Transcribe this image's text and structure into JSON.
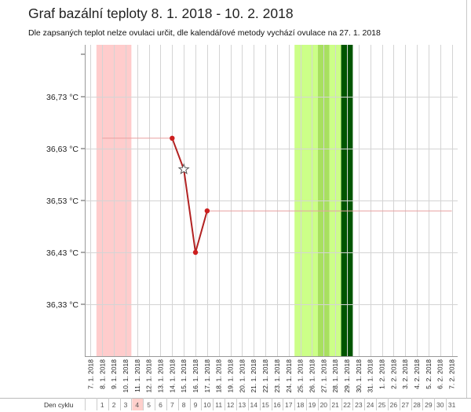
{
  "title": "Graf bazální teploty 8. 1. 2018 - 10. 2. 2018",
  "subtitle": "Dle zapsaných teplot nelze ovulaci určit, dle kalendářové metody vychází ovulace na 27. 1. 2018",
  "cycle_label": "Den cyklu",
  "colors": {
    "menstruation": "#ffcccc",
    "fertile_light": "#ccff88",
    "fertile_mid": "#a8e060",
    "fertile_dark": "#005500",
    "line": "#b22222",
    "coverline": "#e8a0a0",
    "grid": "#d4d4d4",
    "cycle_highlight": "#ffd0cc"
  },
  "chart_data": {
    "type": "line",
    "x_dates": [
      "7. 1. 2018",
      "8. 1. 2018",
      "9. 1. 2018",
      "10. 1. 2018",
      "11. 1. 2018",
      "12. 1. 2018",
      "13. 1. 2018",
      "14. 1. 2018",
      "15. 1. 2018",
      "16. 1. 2018",
      "17. 1. 2018",
      "18. 1. 2018",
      "19. 1. 2018",
      "20. 1. 2018",
      "21. 1. 2018",
      "22. 1. 2018",
      "23. 1. 2018",
      "24. 1. 2018",
      "25. 1. 2018",
      "26. 1. 2018",
      "27. 1. 2018",
      "28. 1. 2018",
      "29. 1. 2018",
      "30. 1. 2018",
      "31. 1. 2018",
      "1. 2. 2018",
      "2. 2. 2018",
      "3. 2. 2018",
      "4. 2. 2018",
      "5. 2. 2018",
      "6. 2. 2018",
      "7. 2. 2018"
    ],
    "cycle_days": [
      "",
      "1",
      "2",
      "3",
      "4",
      "5",
      "6",
      "7",
      "8",
      "9",
      "10",
      "11",
      "12",
      "13",
      "14",
      "15",
      "16",
      "17",
      "18",
      "19",
      "20",
      "21",
      "22",
      "23",
      "24",
      "25",
      "26",
      "27",
      "28",
      "29",
      "30",
      "31"
    ],
    "current_cycle_day": "4",
    "y_ticks": [
      "36,33 °C",
      "36,43 °C",
      "36,53 °C",
      "36,63 °C",
      "36,73 °C"
    ],
    "y_tick_values": [
      36.33,
      36.43,
      36.53,
      36.63,
      36.73
    ],
    "ylim": [
      36.23,
      36.83
    ],
    "series": [
      {
        "points": [
          {
            "x": "14. 1. 2018",
            "y": 36.65
          },
          {
            "x": "15. 1. 2018",
            "y": 36.59,
            "marker": "star"
          },
          {
            "x": "16. 1. 2018",
            "y": 36.43
          },
          {
            "x": "17. 1. 2018",
            "y": 36.51
          }
        ]
      }
    ],
    "coverlines": [
      {
        "from": "8. 1. 2018",
        "to": "14. 1. 2018",
        "y": 36.65
      },
      {
        "from": "17. 1. 2018",
        "to": "7. 2. 2018",
        "y": 36.51
      }
    ],
    "bands": [
      {
        "from": "8. 1. 2018",
        "to": "10. 1. 2018",
        "kind": "menstruation"
      },
      {
        "from": "25. 1. 2018",
        "to": "26. 1. 2018",
        "kind": "fertile_light"
      },
      {
        "from": "27. 1. 2018",
        "to": "27. 1. 2018",
        "kind": "fertile_mid"
      },
      {
        "from": "28. 1. 2018",
        "to": "28. 1. 2018",
        "kind": "fertile_light"
      },
      {
        "from": "29. 1. 2018",
        "to": "29. 1. 2018",
        "kind": "fertile_dark"
      }
    ],
    "grid": true
  }
}
